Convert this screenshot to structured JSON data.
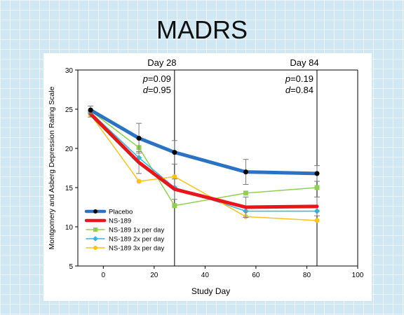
{
  "slide": {
    "title": "MADRS"
  },
  "colors": {
    "background": "#cfe8f3",
    "placebo": "#2a73c4",
    "ns189": "#e8161b",
    "ns189_1x": "#8fd14f",
    "ns189_2x": "#2fb5e8",
    "ns189_3x": "#ffc21a",
    "errorbar": "#808080"
  },
  "chart_data": {
    "type": "line",
    "xlabel": "Study Day",
    "ylabel": "Montgomery and Asberg Depression Rating Scale",
    "xlim": [
      -10,
      100
    ],
    "ylim": [
      5,
      30
    ],
    "xticks": [
      0,
      20,
      40,
      60,
      80,
      100
    ],
    "yticks": [
      5,
      10,
      15,
      20,
      25,
      30
    ],
    "grid": false,
    "legend_position": "bottom-left",
    "reference_lines": [
      {
        "x": 28,
        "label": "Day 28",
        "p_label": "p",
        "p_value": "=0.09",
        "d_label": "d",
        "d_value": "=0.95"
      },
      {
        "x": 84,
        "label": "Day 84",
        "p_label": "p",
        "p_value": "=0.19",
        "d_label": "d",
        "d_value": "=0.84"
      }
    ],
    "series": [
      {
        "name": "Placebo",
        "color": "#2a73c4",
        "marker": "circle",
        "marker_color": "#000000",
        "line_width": 5,
        "x": [
          -5,
          14,
          28,
          56,
          84
        ],
        "y": [
          24.9,
          21.3,
          19.5,
          17.0,
          16.8
        ],
        "error": [
          0.5,
          1.9,
          1.5,
          1.6,
          1.0
        ]
      },
      {
        "name": "NS-189",
        "color": "#e8161b",
        "marker": "none",
        "marker_color": "#e8161b",
        "line_width": 5,
        "x": [
          -5,
          14,
          28,
          56,
          84
        ],
        "y": [
          24.4,
          18.2,
          14.8,
          12.5,
          12.6
        ],
        "error": [
          0.4,
          1.4,
          1.3,
          1.3,
          1.2
        ]
      },
      {
        "name": "NS-189 1x per day",
        "color": "#8fd14f",
        "marker": "square",
        "marker_color": "#8fd14f",
        "line_width": 1.5,
        "x": [
          -5,
          14,
          28,
          56,
          84
        ],
        "y": [
          24.8,
          20.1,
          12.7,
          14.3,
          15.0
        ],
        "error": [
          0,
          0,
          0,
          0,
          0
        ]
      },
      {
        "name": "NS-189 2x per day",
        "color": "#2fb5e8",
        "marker": "diamond",
        "marker_color": "#2fb5e8",
        "line_width": 1.5,
        "x": [
          -5,
          14,
          28,
          56,
          84
        ],
        "y": [
          24.6,
          18.8,
          15.0,
          12.0,
          12.0
        ],
        "error": [
          0,
          0,
          0,
          0,
          0
        ]
      },
      {
        "name": "NS-189 3x per day",
        "color": "#ffc21a",
        "marker": "circle",
        "marker_color": "#ffc21a",
        "line_width": 1.5,
        "x": [
          -5,
          14,
          28,
          56,
          84
        ],
        "y": [
          24.3,
          15.8,
          16.4,
          11.3,
          10.8
        ],
        "error": [
          0,
          0,
          0,
          0,
          0
        ]
      }
    ]
  }
}
